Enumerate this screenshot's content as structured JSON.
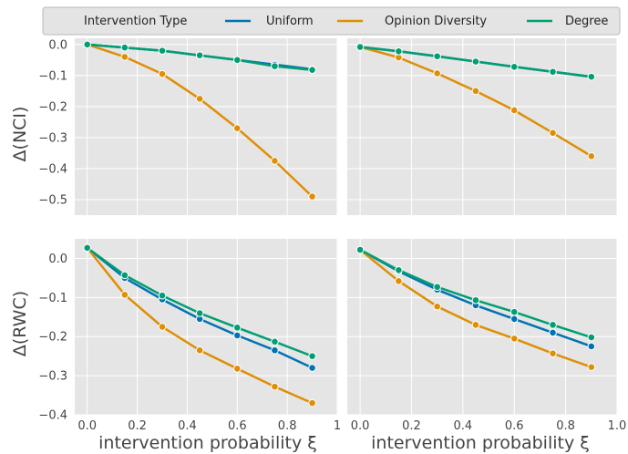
{
  "legend": {
    "title": "Intervention Type",
    "items": [
      {
        "label": "Uniform",
        "color": "#0173b2"
      },
      {
        "label": "Opinion Diversity",
        "color": "#de8f05"
      },
      {
        "label": "Degree",
        "color": "#029e73"
      }
    ]
  },
  "labels": {
    "ylabel_top": "Δ(NCI)",
    "ylabel_bottom": "Δ(RWC)",
    "xlabel": "intervention probability ξ"
  },
  "chart_data": [
    {
      "type": "line",
      "panel": "top-left",
      "x": [
        0.0,
        0.15,
        0.3,
        0.45,
        0.6,
        0.75,
        0.9
      ],
      "xlim": [
        -0.05,
        1.0
      ],
      "ylim": [
        -0.55,
        0.02
      ],
      "xticks": [
        0.0,
        0.2,
        0.4,
        0.6,
        0.8,
        1.0
      ],
      "xtick_labels": [
        "0.0",
        "0.2",
        "0.4",
        "0.6",
        "0.8",
        "1"
      ],
      "show_xticklabels": false,
      "yticks": [
        0.0,
        -0.1,
        -0.2,
        -0.3,
        -0.4,
        -0.5
      ],
      "ytick_labels": [
        "0.0",
        "−0.1",
        "−0.2",
        "−0.3",
        "−0.4",
        "−0.5"
      ],
      "show_yticklabels": true,
      "series": [
        {
          "name": "Uniform",
          "values": [
            0.0,
            -0.01,
            -0.02,
            -0.035,
            -0.05,
            -0.065,
            -0.08
          ]
        },
        {
          "name": "Opinion Diversity",
          "values": [
            0.0,
            -0.04,
            -0.095,
            -0.175,
            -0.27,
            -0.375,
            -0.49
          ]
        },
        {
          "name": "Degree",
          "values": [
            0.0,
            -0.01,
            -0.02,
            -0.035,
            -0.05,
            -0.07,
            -0.082
          ]
        }
      ]
    },
    {
      "type": "line",
      "panel": "top-right",
      "x": [
        0.0,
        0.15,
        0.3,
        0.45,
        0.6,
        0.75,
        0.9
      ],
      "xlim": [
        -0.05,
        1.0
      ],
      "ylim": [
        -0.55,
        0.02
      ],
      "xticks": [
        0.0,
        0.2,
        0.4,
        0.6,
        0.8,
        1.0
      ],
      "xtick_labels": [
        "0.0",
        "0.2",
        "0.4",
        "0.6",
        "0.8",
        "1.0"
      ],
      "show_xticklabels": false,
      "yticks": [
        0.0,
        -0.1,
        -0.2,
        -0.3,
        -0.4,
        -0.5
      ],
      "ytick_labels": [
        "0.0",
        "−0.1",
        "−0.2",
        "−0.3",
        "−0.4",
        "−0.5"
      ],
      "show_yticklabels": false,
      "series": [
        {
          "name": "Uniform",
          "values": [
            -0.008,
            -0.022,
            -0.038,
            -0.055,
            -0.072,
            -0.088,
            -0.104
          ]
        },
        {
          "name": "Opinion Diversity",
          "values": [
            -0.008,
            -0.042,
            -0.093,
            -0.15,
            -0.212,
            -0.285,
            -0.36
          ]
        },
        {
          "name": "Degree",
          "values": [
            -0.008,
            -0.022,
            -0.038,
            -0.055,
            -0.072,
            -0.088,
            -0.104
          ]
        }
      ]
    },
    {
      "type": "line",
      "panel": "bottom-left",
      "x": [
        0.0,
        0.15,
        0.3,
        0.45,
        0.6,
        0.75,
        0.9
      ],
      "xlim": [
        -0.05,
        1.0
      ],
      "ylim": [
        -0.4,
        0.05
      ],
      "xticks": [
        0.0,
        0.2,
        0.4,
        0.6,
        0.8,
        1.0
      ],
      "xtick_labels": [
        "0.0",
        "0.2",
        "0.4",
        "0.6",
        "0.8",
        "1"
      ],
      "show_xticklabels": true,
      "yticks": [
        0.0,
        -0.1,
        -0.2,
        -0.3,
        -0.4
      ],
      "ytick_labels": [
        "0.0",
        "−0.1",
        "−0.2",
        "−0.3",
        "−0.4"
      ],
      "show_yticklabels": true,
      "series": [
        {
          "name": "Uniform",
          "values": [
            0.027,
            -0.05,
            -0.105,
            -0.155,
            -0.197,
            -0.235,
            -0.28
          ]
        },
        {
          "name": "Opinion Diversity",
          "values": [
            0.027,
            -0.093,
            -0.175,
            -0.235,
            -0.282,
            -0.328,
            -0.37
          ]
        },
        {
          "name": "Degree",
          "values": [
            0.027,
            -0.043,
            -0.095,
            -0.14,
            -0.177,
            -0.213,
            -0.25
          ]
        }
      ]
    },
    {
      "type": "line",
      "panel": "bottom-right",
      "x": [
        0.0,
        0.15,
        0.3,
        0.45,
        0.6,
        0.75,
        0.9
      ],
      "xlim": [
        -0.05,
        1.0
      ],
      "ylim": [
        -0.4,
        0.05
      ],
      "xticks": [
        0.0,
        0.2,
        0.4,
        0.6,
        0.8,
        1.0
      ],
      "xtick_labels": [
        "0.0",
        "0.2",
        "0.4",
        "0.6",
        "0.8",
        "1.0"
      ],
      "show_xticklabels": true,
      "yticks": [
        0.0,
        -0.1,
        -0.2,
        -0.3,
        -0.4
      ],
      "ytick_labels": [
        "0.0",
        "−0.1",
        "−0.2",
        "−0.3",
        "−0.4"
      ],
      "show_yticklabels": false,
      "series": [
        {
          "name": "Uniform",
          "values": [
            0.022,
            -0.033,
            -0.08,
            -0.12,
            -0.155,
            -0.19,
            -0.225
          ]
        },
        {
          "name": "Opinion Diversity",
          "values": [
            0.022,
            -0.058,
            -0.123,
            -0.17,
            -0.205,
            -0.243,
            -0.278
          ]
        },
        {
          "name": "Degree",
          "values": [
            0.022,
            -0.03,
            -0.073,
            -0.107,
            -0.137,
            -0.17,
            -0.202
          ]
        }
      ]
    }
  ]
}
